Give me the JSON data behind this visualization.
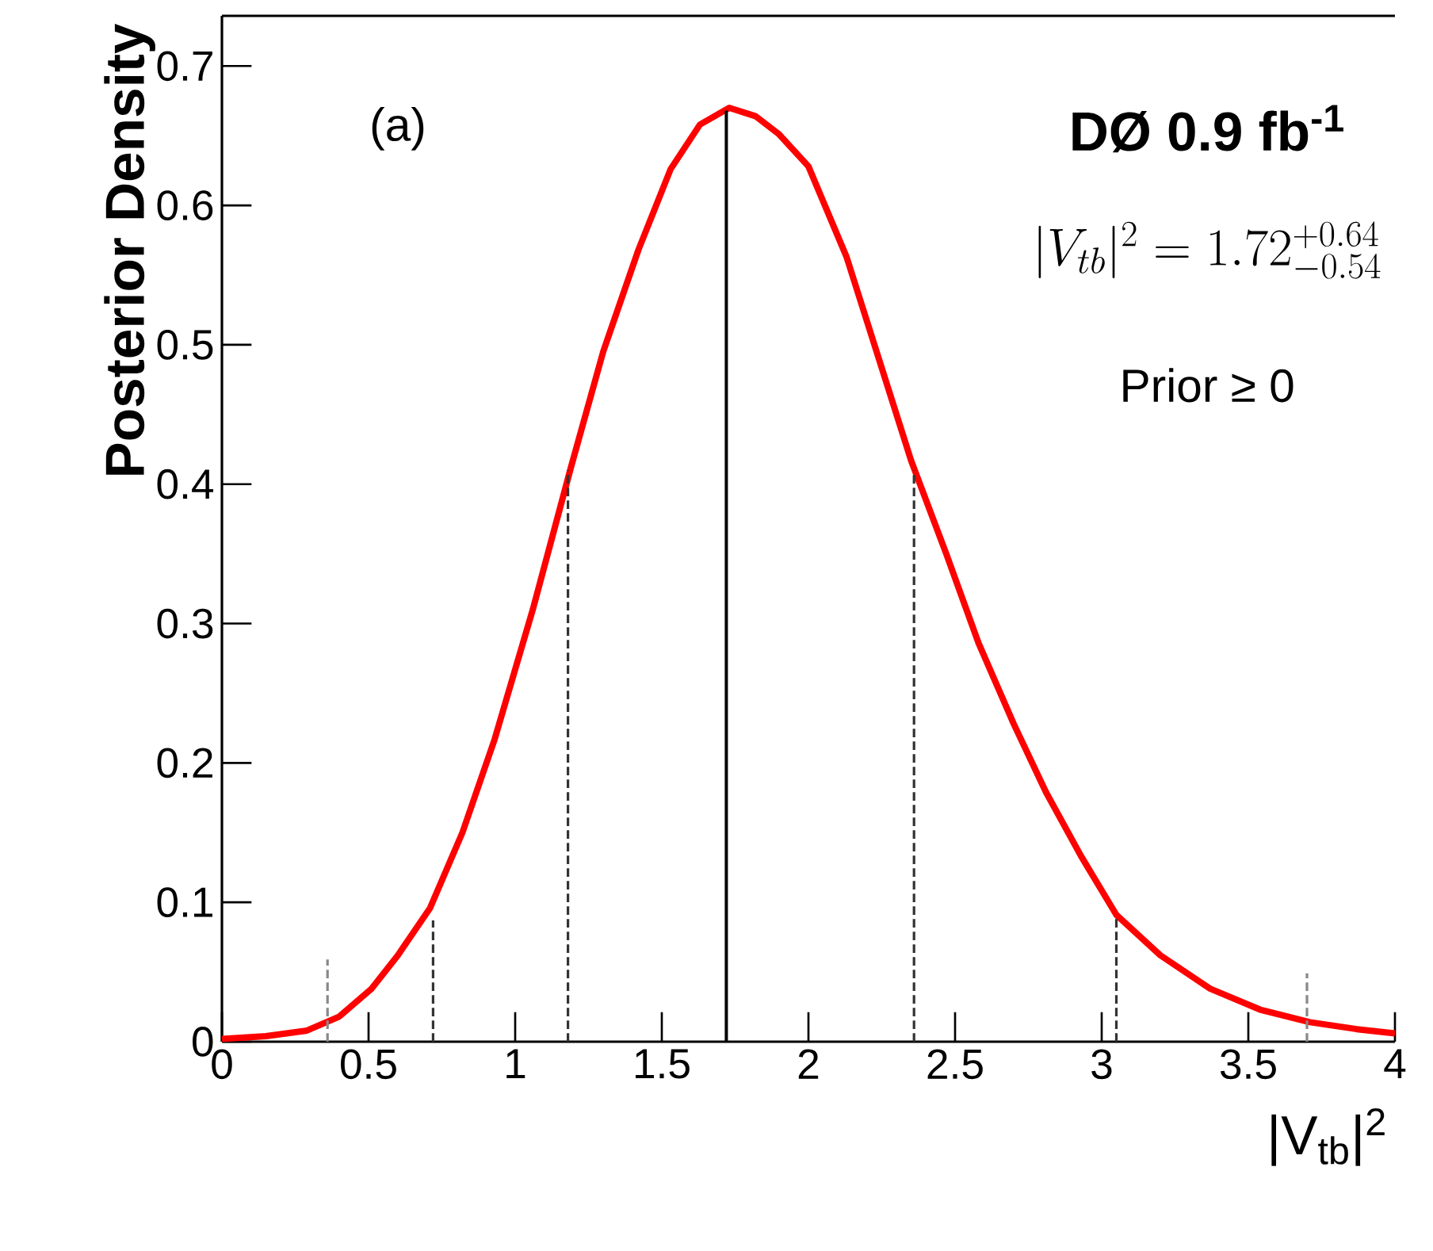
{
  "chart_data": {
    "type": "line",
    "xlabel": "|V$_{tb}$|$^{2}$",
    "ylabel": "Posterior Density",
    "annotations": [
      "(a)",
      "DØ  0.9 fb$^{-1}$",
      "|V_{tb}|^{2} = 1.72^{+0.64}_{-0.54}",
      "Prior ≥ 0"
    ],
    "xlim": [
      0,
      4
    ],
    "ylim": [
      0,
      0.736
    ],
    "xticks": [
      0,
      0.5,
      1,
      1.5,
      2,
      2.5,
      3,
      3.5,
      4
    ],
    "yticks": [
      0,
      0.1,
      0.2,
      0.3,
      0.4,
      0.5,
      0.6,
      0.7
    ],
    "series": [
      {
        "color": "#ff0000",
        "line_style": "solid",
        "x": [
          0,
          0.15,
          0.29,
          0.4,
          0.51,
          0.6,
          0.71,
          0.82,
          0.93,
          1.06,
          1.19,
          1.3,
          1.42,
          1.53,
          1.63,
          1.73,
          1.82,
          1.9,
          2.0,
          2.13,
          2.24,
          2.35,
          2.47,
          2.58,
          2.7,
          2.81,
          2.93,
          3.05,
          3.2,
          3.37,
          3.54,
          3.71,
          3.87,
          4.0
        ],
        "values": [
          0.002,
          0.004,
          0.008,
          0.018,
          0.038,
          0.062,
          0.096,
          0.15,
          0.217,
          0.31,
          0.412,
          0.495,
          0.568,
          0.626,
          0.658,
          0.67,
          0.664,
          0.651,
          0.628,
          0.563,
          0.49,
          0.417,
          0.35,
          0.286,
          0.228,
          0.179,
          0.133,
          0.091,
          0.062,
          0.038,
          0.023,
          0.014,
          0.009,
          0.006
        ]
      },
      {
        "color": "#000000",
        "line_style": "solid",
        "x": [
          1.72,
          1.72
        ],
        "values": [
          0,
          0.668
        ]
      },
      {
        "color": "#333333",
        "line_style": "dashed",
        "x": [
          0.72,
          0.72
        ],
        "values": [
          0,
          0.087
        ]
      },
      {
        "color": "#333333",
        "line_style": "dashed",
        "x": [
          1.18,
          1.18
        ],
        "values": [
          0,
          0.41
        ]
      },
      {
        "color": "#333333",
        "line_style": "dashed",
        "x": [
          2.36,
          2.36
        ],
        "values": [
          0,
          0.41
        ]
      },
      {
        "color": "#333333",
        "line_style": "dashed",
        "x": [
          3.05,
          3.05
        ],
        "values": [
          0,
          0.09
        ]
      },
      {
        "color": "#888888",
        "line_style": "dashed",
        "x": [
          0.36,
          0.36
        ],
        "values": [
          0,
          0.059
        ]
      },
      {
        "color": "#888888",
        "line_style": "dashed",
        "x": [
          3.7,
          3.7
        ],
        "values": [
          0,
          0.049
        ]
      }
    ]
  }
}
